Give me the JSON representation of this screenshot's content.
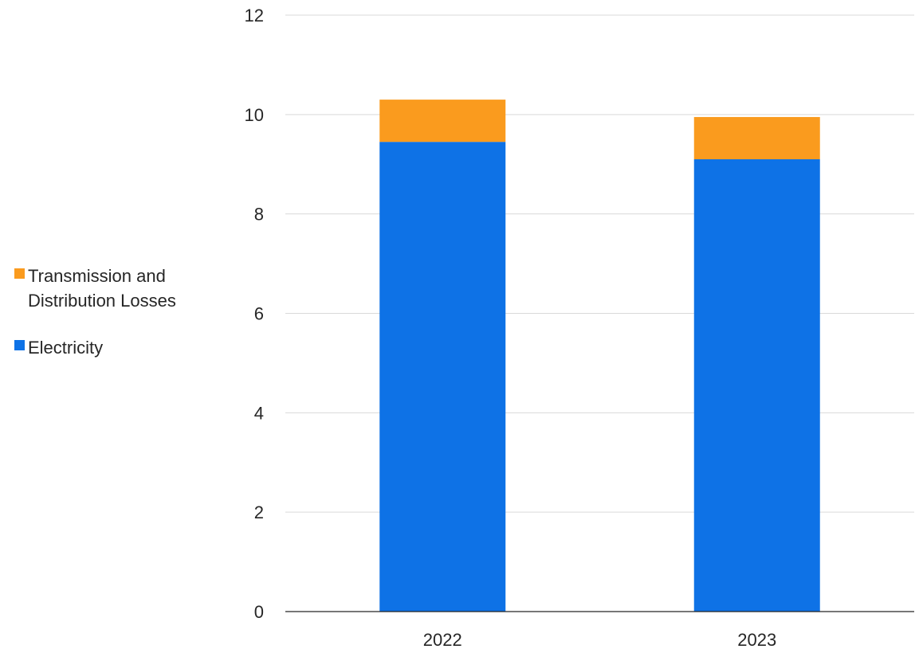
{
  "chart_data": {
    "type": "bar",
    "stacked": true,
    "categories": [
      "2022",
      "2023"
    ],
    "series": [
      {
        "name": "Electricity",
        "values": [
          9.45,
          9.1
        ],
        "color": "#0e72e6"
      },
      {
        "name": "Transmission and Distribution Losses",
        "values": [
          0.85,
          0.85
        ],
        "color": "#fa9b1e"
      }
    ],
    "ylim": [
      0,
      12
    ],
    "yticks": [
      0,
      2,
      4,
      6,
      8,
      10,
      12
    ],
    "title": "",
    "xlabel": "",
    "ylabel": "",
    "grid": true,
    "legend": {
      "placement": "left",
      "entries": [
        {
          "label_lines": [
            "Transmission and",
            "Distribution Losses"
          ],
          "color": "#fa9b1e"
        },
        {
          "label_lines": [
            "Electricity"
          ],
          "color": "#0e72e6"
        }
      ]
    },
    "gridline_color": "#d9d9d9",
    "axis_color": "#262626"
  }
}
